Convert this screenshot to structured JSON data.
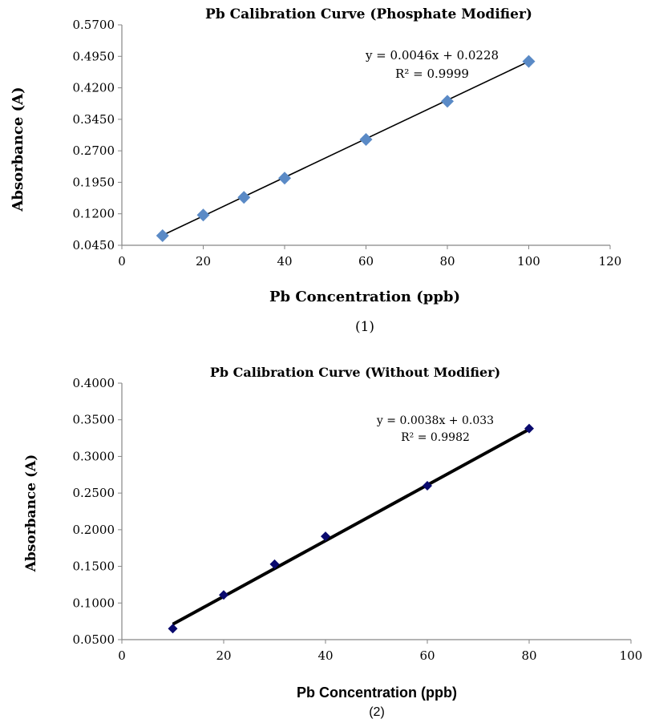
{
  "chart_data": [
    {
      "type": "scatter",
      "title": "Pb Calibration Curve (Phosphate Modifier)",
      "xlabel": "Pb Concentration (ppb)",
      "ylabel": "Absorbance (A)",
      "caption": "(1)",
      "xlim": [
        0,
        120
      ],
      "ylim": [
        0.045,
        0.57
      ],
      "xticks": [
        "0",
        "20",
        "40",
        "60",
        "80",
        "100",
        "120"
      ],
      "yticks": [
        "0.0450",
        "0.1200",
        "0.1950",
        "0.2700",
        "0.3450",
        "0.4200",
        "0.4950",
        "0.5700"
      ],
      "grid": false,
      "series": [
        {
          "x": [
            10,
            20,
            30,
            40,
            60,
            80,
            100
          ],
          "y": [
            0.068,
            0.117,
            0.159,
            0.205,
            0.297,
            0.388,
            0.483
          ],
          "marker": "diamond",
          "color": "#5a8ac6"
        }
      ],
      "trendline": {
        "slope": 0.0046,
        "intercept": 0.0228,
        "x_range": [
          10,
          100
        ],
        "color": "#000000"
      },
      "annotation": {
        "equation": "y = 0.0046x + 0.0228",
        "r2": "R² = 0.9999"
      }
    },
    {
      "type": "scatter",
      "title": "Pb Calibration Curve (Without Modifier)",
      "xlabel": "Pb Concentration (ppb)",
      "ylabel": "Absorbance (A)",
      "caption": "(2)",
      "xlim": [
        0,
        100
      ],
      "ylim": [
        0.05,
        0.4
      ],
      "xticks": [
        "0",
        "20",
        "40",
        "60",
        "80",
        "100"
      ],
      "yticks": [
        "0.0500",
        "0.1000",
        "0.1500",
        "0.2000",
        "0.2500",
        "0.3000",
        "0.3500",
        "0.4000"
      ],
      "grid": false,
      "series": [
        {
          "x": [
            10,
            20,
            30,
            40,
            60,
            80
          ],
          "y": [
            0.065,
            0.111,
            0.153,
            0.191,
            0.26,
            0.338
          ],
          "marker": "diamond",
          "color": "#0a0a6e"
        }
      ],
      "trendline": {
        "slope": 0.0038,
        "intercept": 0.033,
        "x_range": [
          10,
          80
        ],
        "color": "#000000"
      },
      "annotation": {
        "equation": "y = 0.0038x + 0.033",
        "r2": "R² = 0.9982"
      }
    }
  ]
}
